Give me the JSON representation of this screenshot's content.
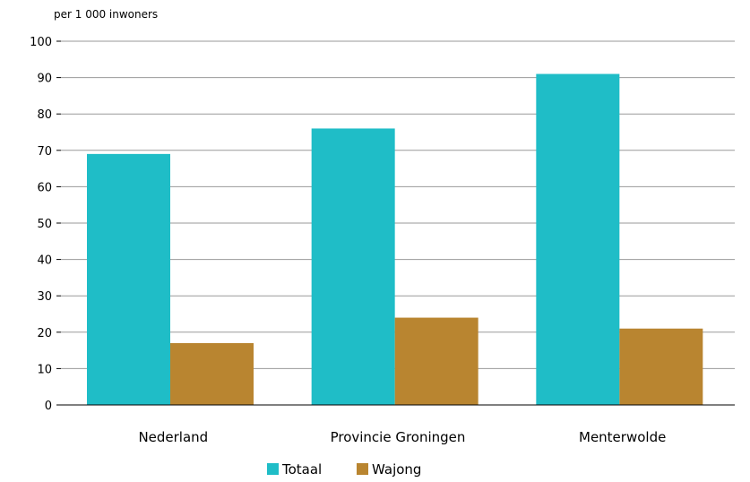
{
  "chart_data": {
    "type": "bar",
    "unit_label": "per 1 000 inwoners",
    "categories": [
      "Nederland",
      "Provincie Groningen",
      "Menterwolde"
    ],
    "series": [
      {
        "name": "Totaal",
        "values": [
          69,
          76,
          91
        ],
        "color": "#1fbdc7"
      },
      {
        "name": "Wajong",
        "values": [
          17,
          24,
          21
        ],
        "color": "#b98530"
      }
    ],
    "ylim": [
      0,
      100
    ],
    "yticks": [
      0,
      10,
      20,
      30,
      40,
      50,
      60,
      70,
      80,
      90,
      100
    ],
    "grid": true,
    "legend_position": "bottom"
  }
}
